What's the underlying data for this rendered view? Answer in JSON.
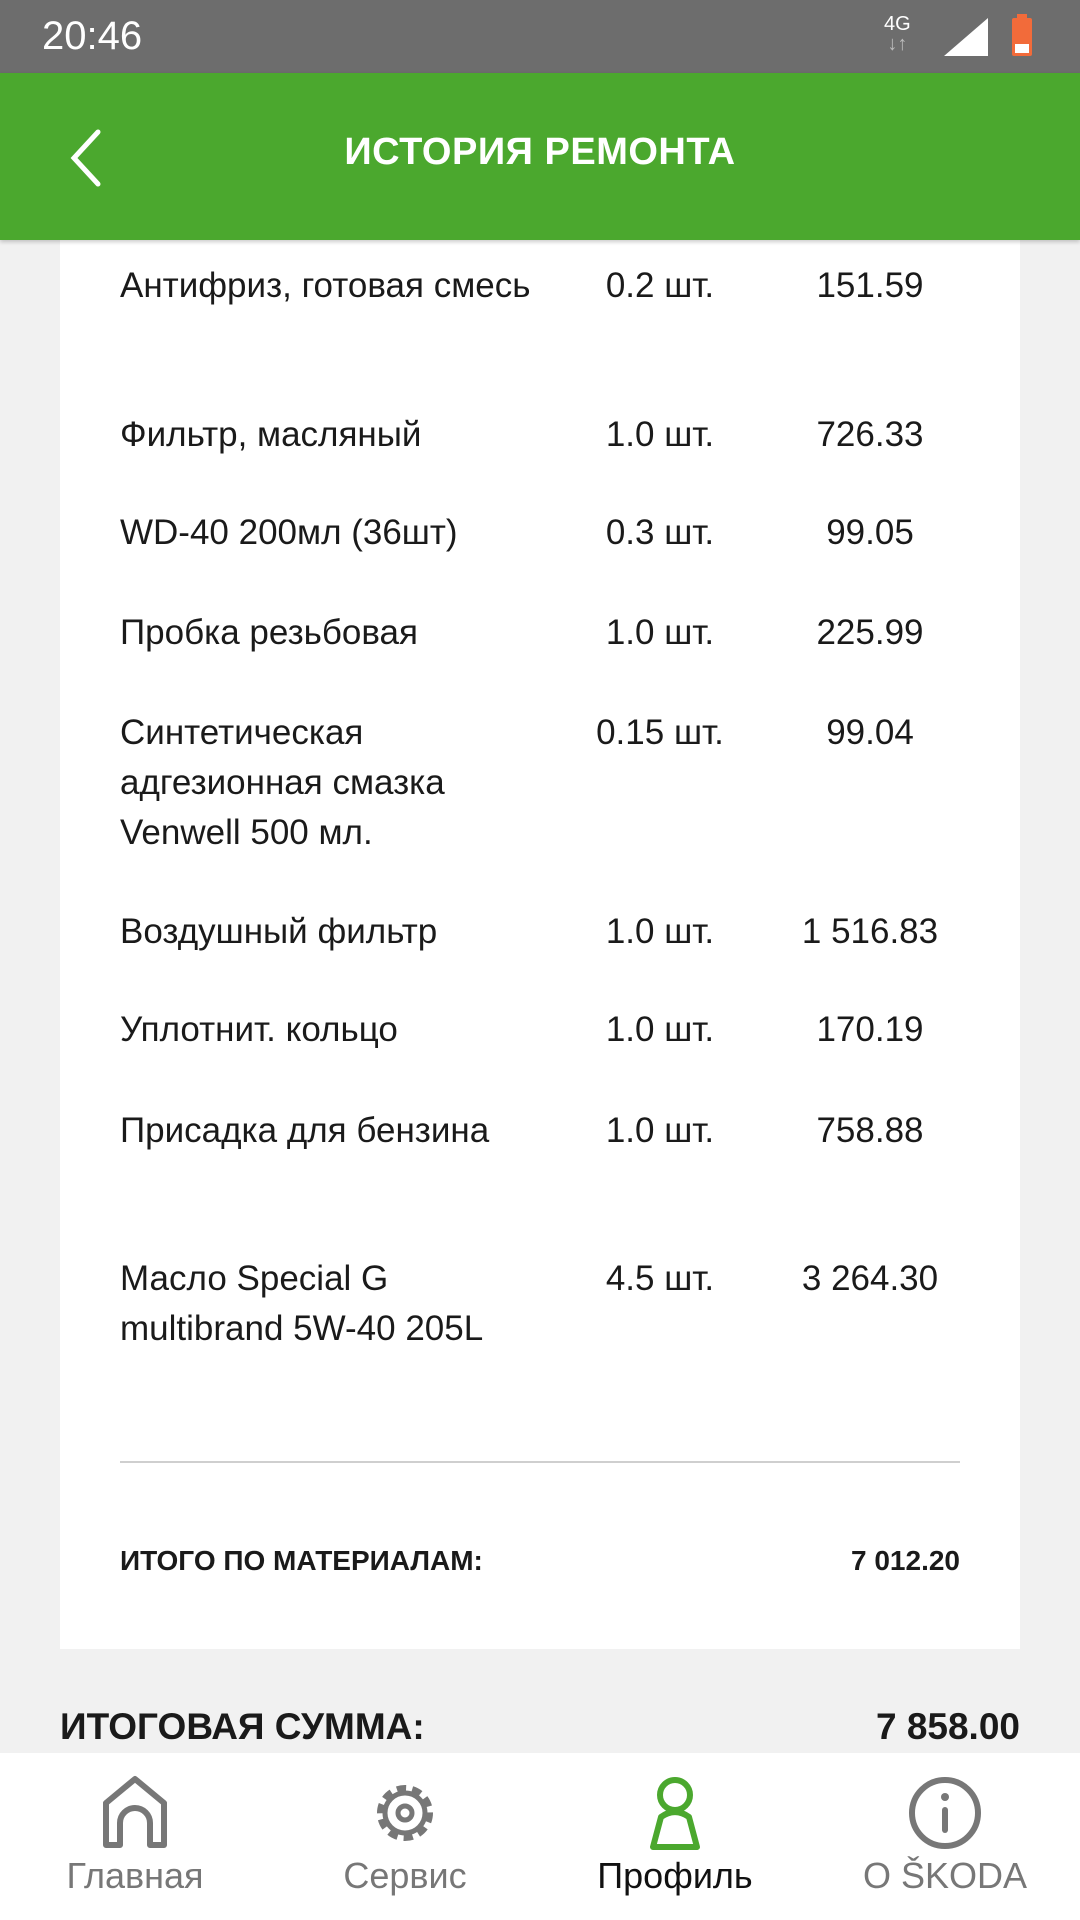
{
  "status_bar": {
    "time": "20:46",
    "network": "4G"
  },
  "header": {
    "title": "ИСТОРИЯ РЕМОНТА"
  },
  "materials": [
    {
      "name": "Антифриз, готовая смесь",
      "qty": "0.2 шт.",
      "price": "151.59"
    },
    {
      "name": "Фильтр, масляный",
      "qty": "1.0 шт.",
      "price": "726.33"
    },
    {
      "name": "WD-40 200мл (36шт)",
      "qty": "0.3 шт.",
      "price": "99.05"
    },
    {
      "name": "Пробка резьбовая",
      "qty": "1.0 шт.",
      "price": "225.99"
    },
    {
      "name": "Синтетическая адгезионная смазка Venwell 500 мл.",
      "qty": "0.15 шт.",
      "price": "99.04"
    },
    {
      "name": "Воздушный фильтр",
      "qty": "1.0 шт.",
      "price": "1 516.83"
    },
    {
      "name": "Уплотнит. кольцо",
      "qty": "1.0 шт.",
      "price": "170.19"
    },
    {
      "name": "Присадка для бензина",
      "qty": "1.0 шт.",
      "price": "758.88"
    },
    {
      "name": "Масло Special G multibrand 5W-40 205L",
      "qty": "4.5 шт.",
      "price": "3 264.30"
    }
  ],
  "materials_total": {
    "label": "ИТОГО ПО МАТЕРИАЛАМ:",
    "value": "7 012.20"
  },
  "final_total": {
    "label": "ИТОГОВАЯ СУММА:",
    "value": "7 858.00"
  },
  "bottom_nav": [
    {
      "label": "Главная",
      "icon": "home-icon"
    },
    {
      "label": "Сервис",
      "icon": "gear-icon"
    },
    {
      "label": "Профиль",
      "icon": "profile-icon",
      "active": true
    },
    {
      "label": "O ŠKODA",
      "icon": "info-icon"
    }
  ],
  "colors": {
    "accent": "#4ba82e",
    "status_bar": "#6d6d6d",
    "battery": "#f26b3a"
  }
}
